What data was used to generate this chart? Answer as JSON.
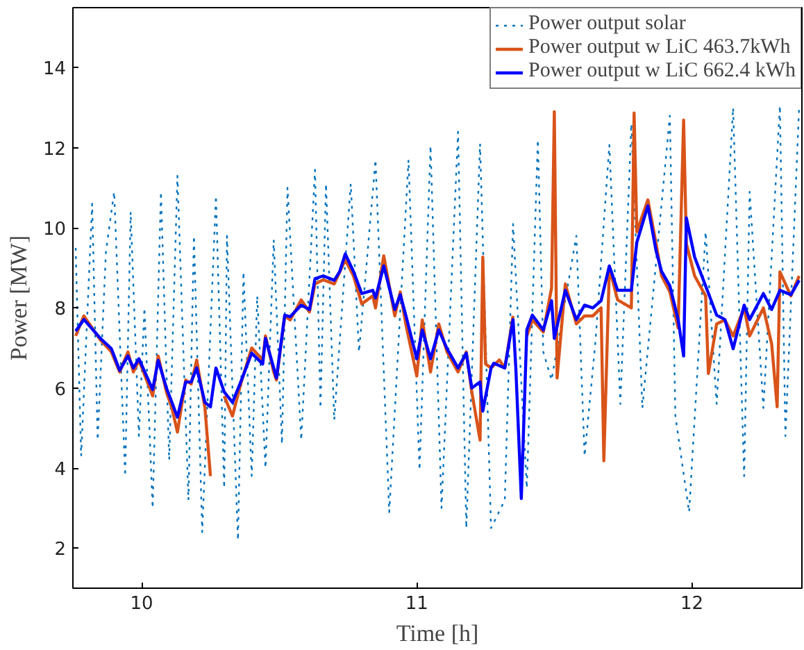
{
  "chart_data": {
    "type": "line",
    "xlabel": "Time [h]",
    "ylabel": "Power [MW]",
    "xlim": [
      9.75,
      12.4
    ],
    "ylim": [
      1,
      15.5
    ],
    "xticks": [
      10,
      11,
      12
    ],
    "yticks": [
      2,
      4,
      6,
      8,
      10,
      12,
      14
    ],
    "grid": false,
    "legend": "top right",
    "series": [
      {
        "name": "Power output solar",
        "color": "#0072bd",
        "line_style": "dotted",
        "x": [
          9.76,
          9.78,
          9.82,
          9.84,
          9.87,
          9.9,
          9.94,
          9.96,
          9.99,
          10.01,
          10.04,
          10.07,
          10.1,
          10.13,
          10.17,
          10.19,
          10.22,
          10.27,
          10.3,
          10.31,
          10.35,
          10.37,
          10.4,
          10.42,
          10.45,
          10.48,
          10.51,
          10.53,
          10.58,
          10.63,
          10.65,
          10.67,
          10.7,
          10.76,
          10.79,
          10.85,
          10.9,
          10.97,
          11.01,
          11.05,
          11.09,
          11.15,
          11.18,
          11.23,
          11.27,
          11.32,
          11.35,
          11.4,
          11.44,
          11.46,
          11.49,
          11.58,
          11.61,
          11.65,
          11.7,
          11.74,
          11.78,
          11.82,
          11.92,
          11.94,
          11.99,
          12.05,
          12.09,
          12.15,
          12.19,
          12.21,
          12.26,
          12.32,
          12.34,
          12.39
        ],
        "values": [
          9.5,
          4.3,
          10.6,
          4.7,
          9.4,
          10.9,
          3.8,
          10.4,
          4.8,
          8.0,
          3.0,
          10.9,
          4.2,
          11.3,
          3.2,
          9.8,
          2.4,
          10.8,
          3.5,
          9.8,
          2.2,
          8.9,
          3.8,
          8.3,
          4.0,
          9.7,
          4.6,
          11.0,
          4.7,
          11.45,
          5.5,
          11.1,
          5.2,
          11.1,
          6.9,
          11.7,
          2.9,
          11.7,
          3.95,
          12.05,
          3.0,
          12.4,
          2.5,
          12.1,
          2.5,
          3.2,
          10.1,
          3.5,
          12.2,
          6.9,
          6.2,
          9.8,
          4.3,
          7.2,
          12.07,
          5.6,
          12.6,
          5.5,
          12.8,
          5.3,
          2.9,
          9.9,
          5.6,
          13.0,
          3.8,
          10.9,
          5.5,
          13.05,
          4.8,
          13.05
        ]
      },
      {
        "name": "Power output w LiC 463.7kWh",
        "color": "#d95319",
        "line_style": "solid",
        "x": [
          9.76,
          9.79,
          9.85,
          9.89,
          9.92,
          9.95,
          9.97,
          9.99,
          10.04,
          10.06,
          10.09,
          10.11,
          10.13,
          10.16,
          10.18,
          10.2,
          10.23,
          10.25,
          10.27,
          10.3,
          10.33,
          10.36,
          10.4,
          10.44,
          10.45,
          10.48,
          10.49,
          10.52,
          10.54,
          10.58,
          10.61,
          10.63,
          10.66,
          10.7,
          10.72,
          10.74,
          10.77,
          10.8,
          10.84,
          10.85,
          10.88,
          10.92,
          10.94,
          10.96,
          11.0,
          11.02,
          11.05,
          11.08,
          11.11,
          11.15,
          11.18,
          11.2,
          11.23,
          11.24,
          11.25,
          11.27,
          11.3,
          11.32,
          11.35,
          11.36,
          11.38,
          11.4,
          11.42,
          11.46,
          11.49,
          11.5,
          11.51,
          11.54,
          11.58,
          11.61,
          11.64,
          11.67,
          11.68,
          11.7,
          11.73,
          11.78,
          11.79,
          11.8,
          11.84,
          11.87,
          11.89,
          11.92,
          11.95,
          11.97,
          11.98,
          12.01,
          12.05,
          12.06,
          12.09,
          12.12,
          12.15,
          12.19,
          12.21,
          12.26,
          12.29,
          12.31,
          12.32,
          12.36,
          12.39
        ],
        "values": [
          7.3,
          7.8,
          7.2,
          6.9,
          6.4,
          6.9,
          6.4,
          6.7,
          5.8,
          6.8,
          5.9,
          5.5,
          4.9,
          6.2,
          6.1,
          6.7,
          5.5,
          3.8,
          null,
          5.8,
          5.3,
          6.1,
          7.0,
          6.7,
          7.3,
          6.4,
          6.2,
          7.8,
          7.7,
          8.2,
          7.9,
          8.6,
          8.7,
          8.6,
          8.9,
          9.2,
          8.8,
          8.1,
          8.3,
          8.0,
          9.3,
          7.8,
          8.4,
          7.6,
          6.3,
          7.7,
          6.4,
          7.6,
          6.9,
          6.4,
          6.9,
          5.9,
          4.7,
          9.27,
          6.6,
          6.5,
          6.7,
          6.5,
          7.8,
          null,
          null,
          7.3,
          7.7,
          7.4,
          8.5,
          12.9,
          6.25,
          8.6,
          7.6,
          7.8,
          7.8,
          8.0,
          4.18,
          9.0,
          8.2,
          8.0,
          12.87,
          9.9,
          10.7,
          9.6,
          8.8,
          8.4,
          7.5,
          12.69,
          9.6,
          8.8,
          8.3,
          6.36,
          7.6,
          7.7,
          7.3,
          8.0,
          7.3,
          8.0,
          7.1,
          5.53,
          8.9,
          8.3,
          8.8
        ]
      },
      {
        "name": "Power output w LiC 662.4 kWh",
        "color": "#0000ff",
        "line_style": "solid",
        "x": [
          9.76,
          9.79,
          9.85,
          9.89,
          9.92,
          9.95,
          9.97,
          9.99,
          10.04,
          10.06,
          10.09,
          10.11,
          10.13,
          10.16,
          10.18,
          10.2,
          10.23,
          10.25,
          10.27,
          10.3,
          10.33,
          10.36,
          10.4,
          10.44,
          10.45,
          10.48,
          10.49,
          10.52,
          10.54,
          10.58,
          10.61,
          10.63,
          10.66,
          10.7,
          10.72,
          10.74,
          10.77,
          10.8,
          10.84,
          10.85,
          10.88,
          10.92,
          10.94,
          10.96,
          11.0,
          11.02,
          11.05,
          11.08,
          11.11,
          11.15,
          11.18,
          11.2,
          11.23,
          11.24,
          11.27,
          11.28,
          11.32,
          11.35,
          11.36,
          11.38,
          11.4,
          11.42,
          11.46,
          11.49,
          11.5,
          11.54,
          11.58,
          11.61,
          11.64,
          11.67,
          11.7,
          11.73,
          11.78,
          11.8,
          11.84,
          11.87,
          11.89,
          11.92,
          11.95,
          11.97,
          11.98,
          12.01,
          12.05,
          12.09,
          12.12,
          12.15,
          12.19,
          12.21,
          12.26,
          12.29,
          12.32,
          12.36,
          12.39
        ],
        "values": [
          7.42,
          7.71,
          7.24,
          6.98,
          6.44,
          6.8,
          6.5,
          6.73,
          5.96,
          6.69,
          6.0,
          5.64,
          5.27,
          6.15,
          6.15,
          6.5,
          5.64,
          5.53,
          6.5,
          5.9,
          5.64,
          6.15,
          6.87,
          6.6,
          7.24,
          6.5,
          6.25,
          7.82,
          7.78,
          8.07,
          7.96,
          8.73,
          8.8,
          8.69,
          8.91,
          9.35,
          8.91,
          8.36,
          8.44,
          8.25,
          9.05,
          7.96,
          8.33,
          7.82,
          6.73,
          7.45,
          6.73,
          7.45,
          6.98,
          6.5,
          6.87,
          6.0,
          6.15,
          5.42,
          6.5,
          6.62,
          6.5,
          7.71,
          6.5,
          3.24,
          7.45,
          7.82,
          7.45,
          8.18,
          7.24,
          8.44,
          7.71,
          8.07,
          8.0,
          8.18,
          9.05,
          8.44,
          8.44,
          9.64,
          10.55,
          9.42,
          8.91,
          8.55,
          7.71,
          6.8,
          10.25,
          9.27,
          8.55,
          7.82,
          7.71,
          6.98,
          8.07,
          7.71,
          8.36,
          7.96,
          8.44,
          8.33,
          8.69
        ]
      }
    ]
  }
}
